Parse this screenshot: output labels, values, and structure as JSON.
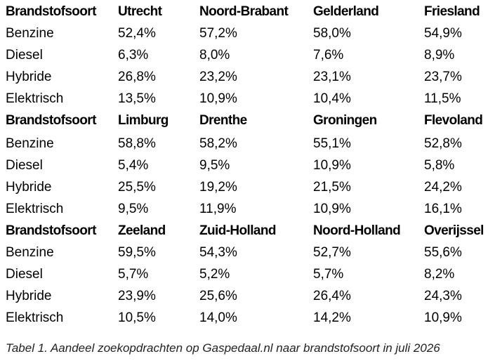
{
  "table": {
    "blocks": [
      {
        "header": [
          "Brandstofsoort",
          "Utrecht",
          "Noord-Brabant",
          "Gelderland",
          "Friesland"
        ],
        "rows": [
          [
            "Benzine",
            "52,4%",
            "57,2%",
            "58,0%",
            "54,9%"
          ],
          [
            "Diesel",
            "6,3%",
            "8,0%",
            "7,6%",
            "8,9%"
          ],
          [
            "Hybride",
            "26,8%",
            "23,2%",
            "23,1%",
            "23,7%"
          ],
          [
            "Elektrisch",
            "13,5%",
            "10,9%",
            "10,4%",
            "11,5%"
          ]
        ]
      },
      {
        "header": [
          "Brandstofsoort",
          "Limburg",
          "Drenthe",
          "Groningen",
          "Flevoland"
        ],
        "rows": [
          [
            "Benzine",
            "58,8%",
            "58,2%",
            "55,1%",
            "52,8%"
          ],
          [
            "Diesel",
            "5,4%",
            "9,5%",
            "10,9%",
            "5,8%"
          ],
          [
            "Hybride",
            "25,5%",
            "19,2%",
            "21,5%",
            "24,2%"
          ],
          [
            "Elektrisch",
            "9,5%",
            "11,9%",
            "10,9%",
            "16,1%"
          ]
        ]
      },
      {
        "header": [
          "Brandstofsoort",
          "Zeeland",
          "Zuid-Holland",
          "Noord-Holland",
          "Overijssel"
        ],
        "rows": [
          [
            "Benzine",
            "59,5%",
            "54,3%",
            "52,7%",
            "55,6%"
          ],
          [
            "Diesel",
            "5,7%",
            "5,2%",
            "5,7%",
            "8,2%"
          ],
          [
            "Hybride",
            "23,9%",
            "25,6%",
            "26,4%",
            "24,3%"
          ],
          [
            "Elektrisch",
            "10,5%",
            "14,0%",
            "14,2%",
            "10,9%"
          ]
        ]
      }
    ]
  },
  "caption": "Tabel 1. Aandeel zoekopdrachten op Gaspedaal.nl naar brandstofsoort in juli 2026"
}
